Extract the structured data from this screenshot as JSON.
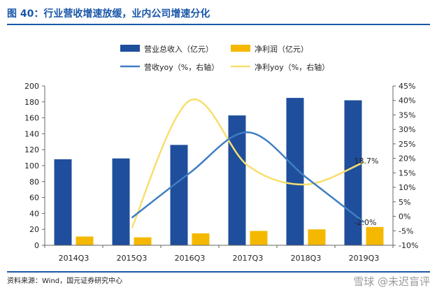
{
  "title": "图 40：行业营收增速放缓，业内公司增速分化",
  "source": "资料来源：Wind，国元证券研究中心",
  "watermark": "雪球 @未迟盲评",
  "colors": {
    "revenue_bar": "#1f4e9c",
    "profit_bar": "#f5b800",
    "revenue_line": "#3f7ec2",
    "profit_line": "#f7df6e",
    "title": "#1a57a8"
  },
  "chart_data": {
    "type": "bar",
    "categories": [
      "2014Q3",
      "2015Q3",
      "2016Q3",
      "2017Q3",
      "2018Q3",
      "2019Q3"
    ],
    "series": [
      {
        "name": "营业总收入（亿元）",
        "kind": "bar",
        "axis": "left",
        "values": [
          108,
          109,
          126,
          163,
          185,
          182
        ]
      },
      {
        "name": "净利润（亿元）",
        "kind": "bar",
        "axis": "left",
        "values": [
          11,
          10,
          15,
          18,
          20,
          23
        ]
      },
      {
        "name": "营收yoy（%，右轴）",
        "kind": "line",
        "axis": "right",
        "values": [
          null,
          -0.5,
          15,
          29,
          13.5,
          -2.0
        ]
      },
      {
        "name": "净利yoy（%，右轴）",
        "kind": "line",
        "axis": "right",
        "values": [
          null,
          -4,
          40,
          17.5,
          11,
          18.7
        ]
      }
    ],
    "left_axis": {
      "min": 0,
      "max": 200,
      "ticks": [
        0,
        20,
        40,
        60,
        80,
        100,
        120,
        140,
        160,
        180,
        200
      ]
    },
    "right_axis": {
      "min": -10,
      "max": 45,
      "ticks": [
        "-10%",
        "-5%",
        "0%",
        "5%",
        "10%",
        "15%",
        "20%",
        "25%",
        "30%",
        "35%",
        "40%",
        "45%"
      ]
    },
    "annotations": [
      "18.7%",
      "-2.0%"
    ],
    "legend_position": "top",
    "grid": false
  }
}
